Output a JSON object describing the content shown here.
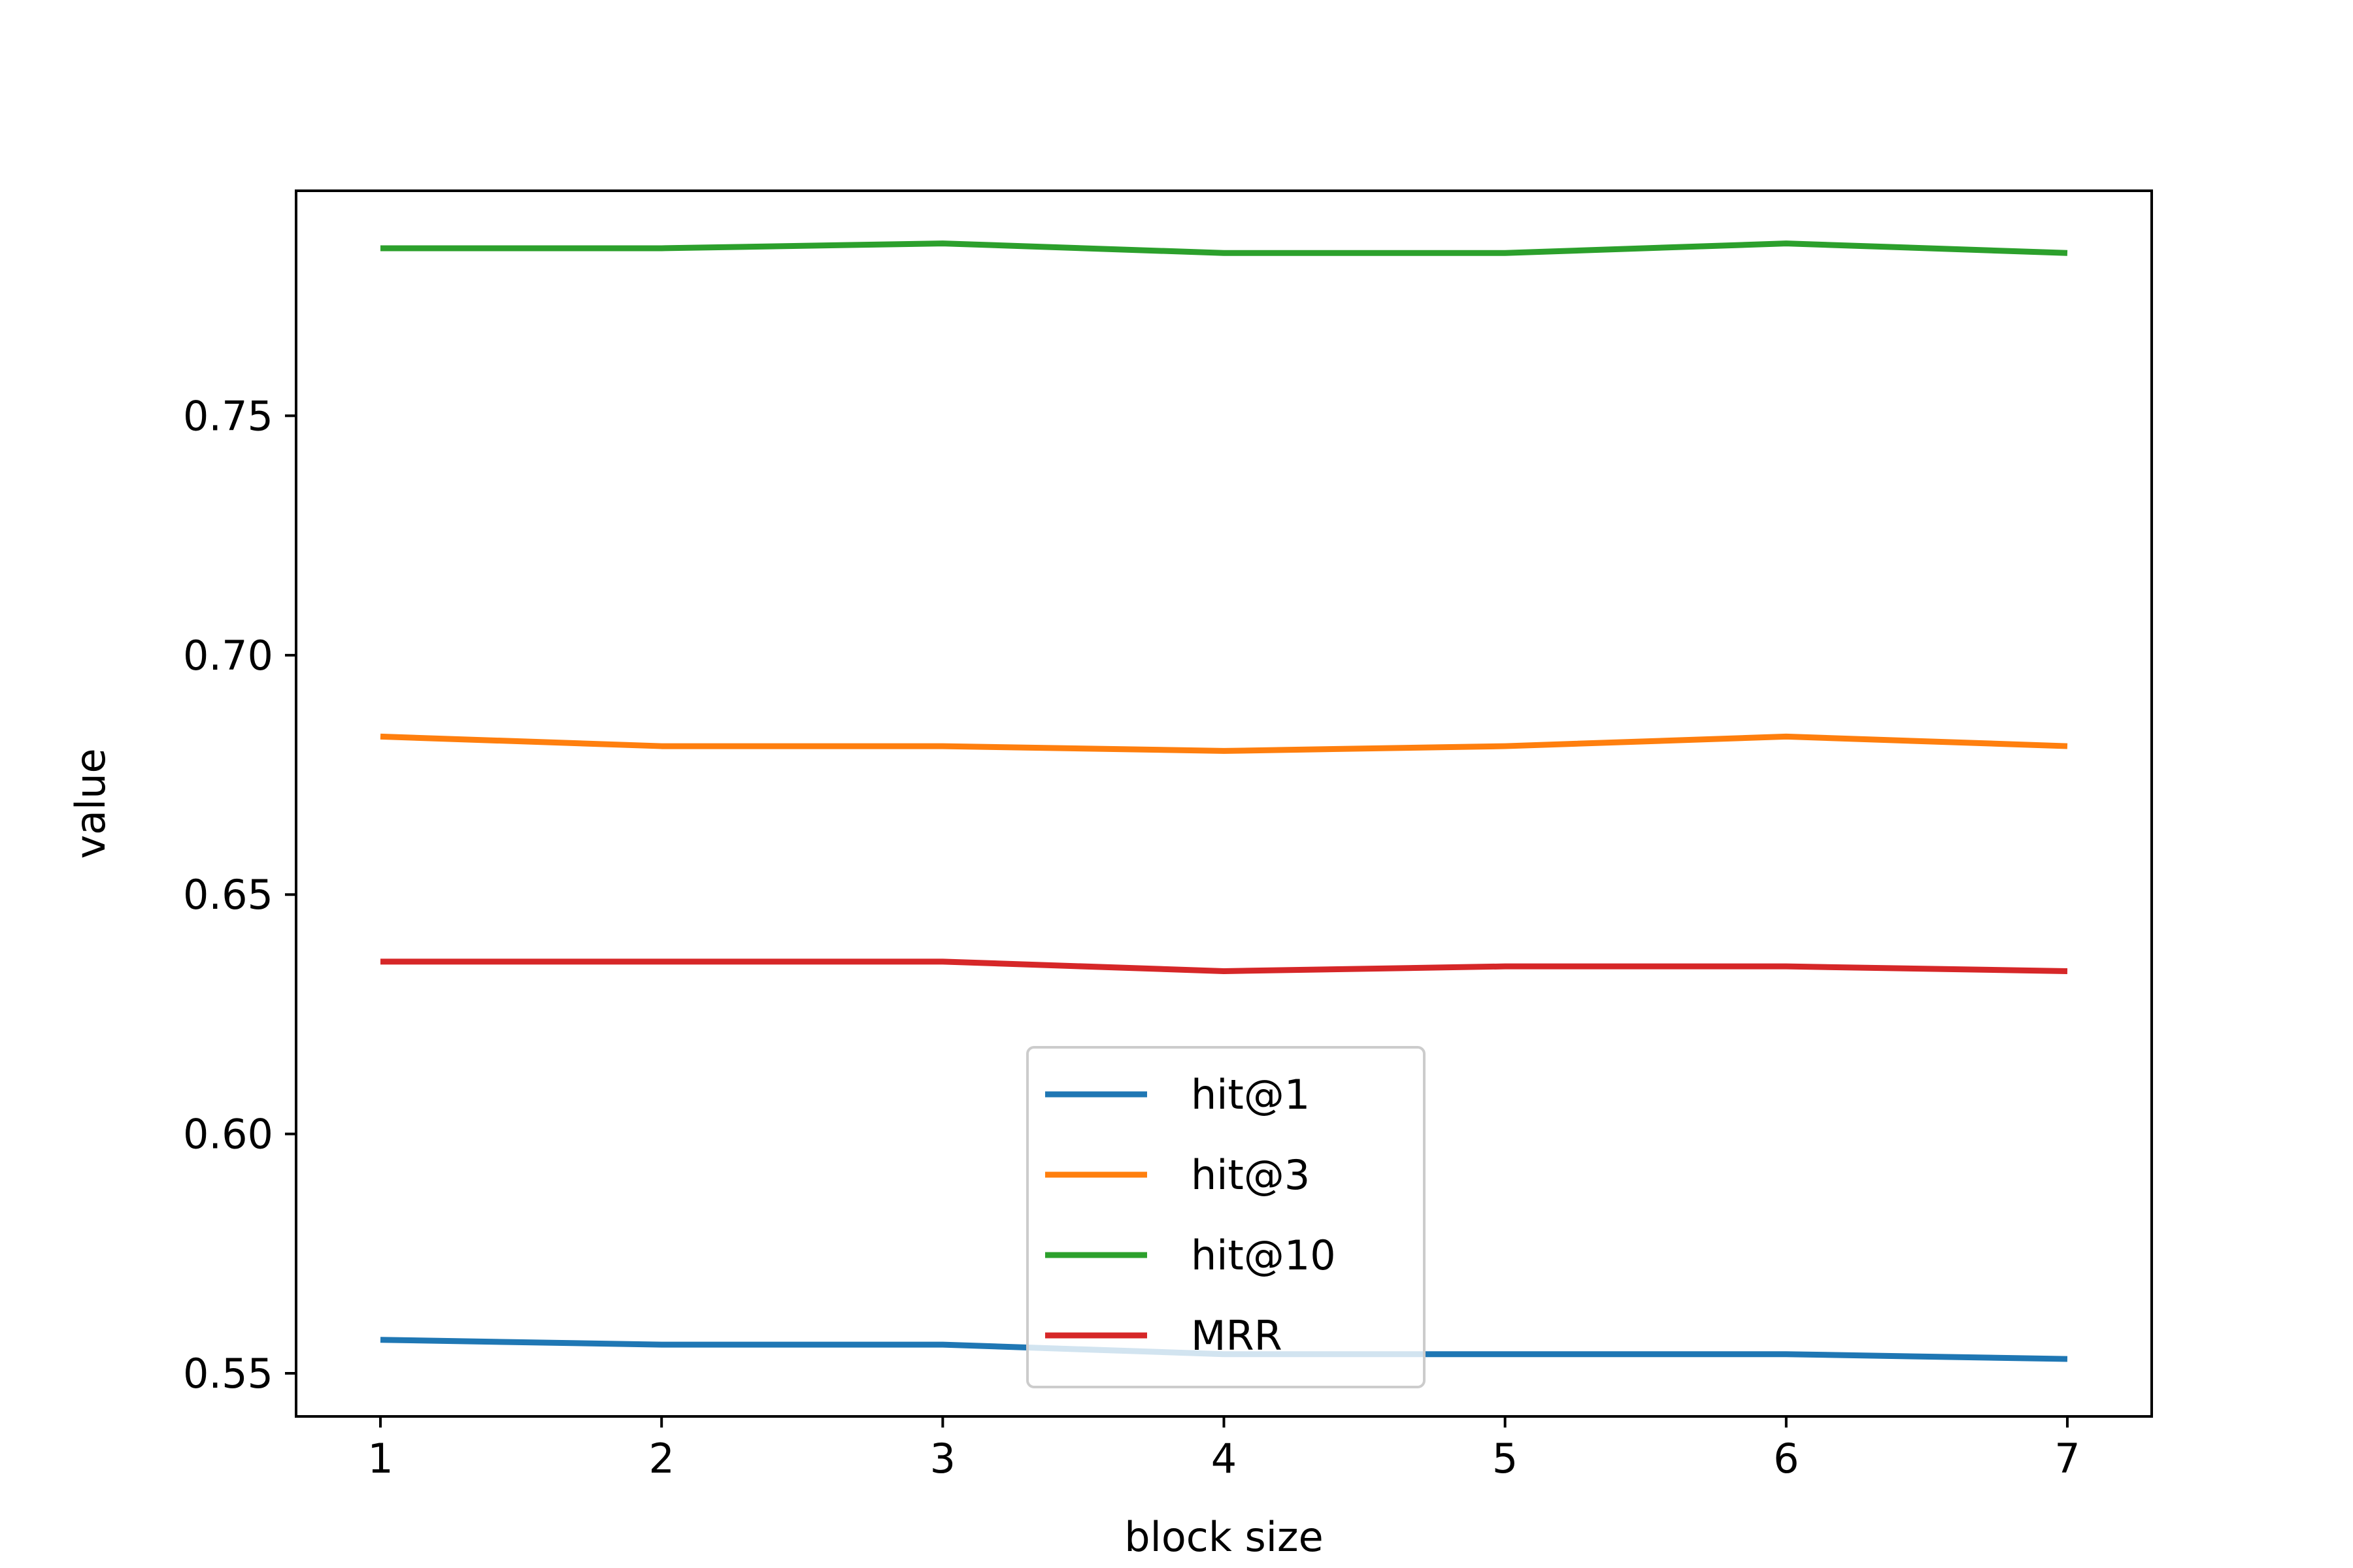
{
  "chart_data": {
    "type": "line",
    "title": "",
    "xlabel": "block size",
    "ylabel": "value",
    "x": [
      1,
      2,
      3,
      4,
      5,
      6,
      7
    ],
    "xticks": [
      "1",
      "2",
      "3",
      "4",
      "5",
      "6",
      "7"
    ],
    "yticks": [
      "0.55",
      "0.60",
      "0.65",
      "0.70",
      "0.75"
    ],
    "xlim": [
      0.7,
      7.3
    ],
    "ylim": [
      0.541,
      0.797
    ],
    "grid": false,
    "legend_position": "lower-center",
    "series": [
      {
        "name": "hit@1",
        "color": "#1f77b4",
        "values": [
          0.557,
          0.556,
          0.556,
          0.554,
          0.554,
          0.554,
          0.553
        ]
      },
      {
        "name": "hit@3",
        "color": "#ff7f0e",
        "values": [
          0.683,
          0.681,
          0.681,
          0.68,
          0.681,
          0.683,
          0.681
        ]
      },
      {
        "name": "hit@10",
        "color": "#2ca02c",
        "values": [
          0.785,
          0.785,
          0.786,
          0.784,
          0.784,
          0.786,
          0.784
        ]
      },
      {
        "name": "MRR",
        "color": "#d62728",
        "values": [
          0.636,
          0.636,
          0.636,
          0.634,
          0.635,
          0.635,
          0.634
        ]
      }
    ]
  }
}
